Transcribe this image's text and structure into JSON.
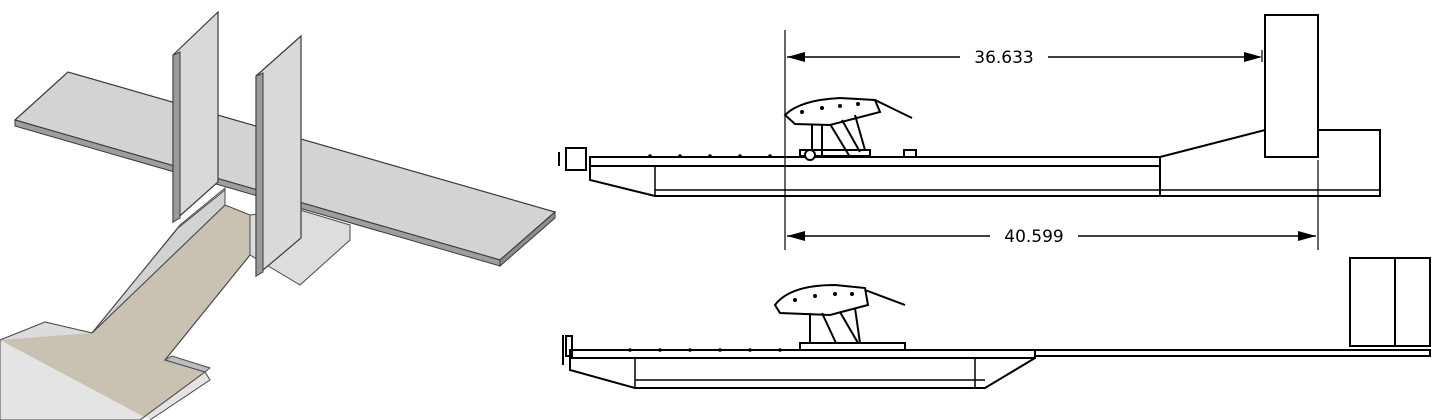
{
  "dimensions": {
    "top": "36.633",
    "bottom": "40.599"
  }
}
